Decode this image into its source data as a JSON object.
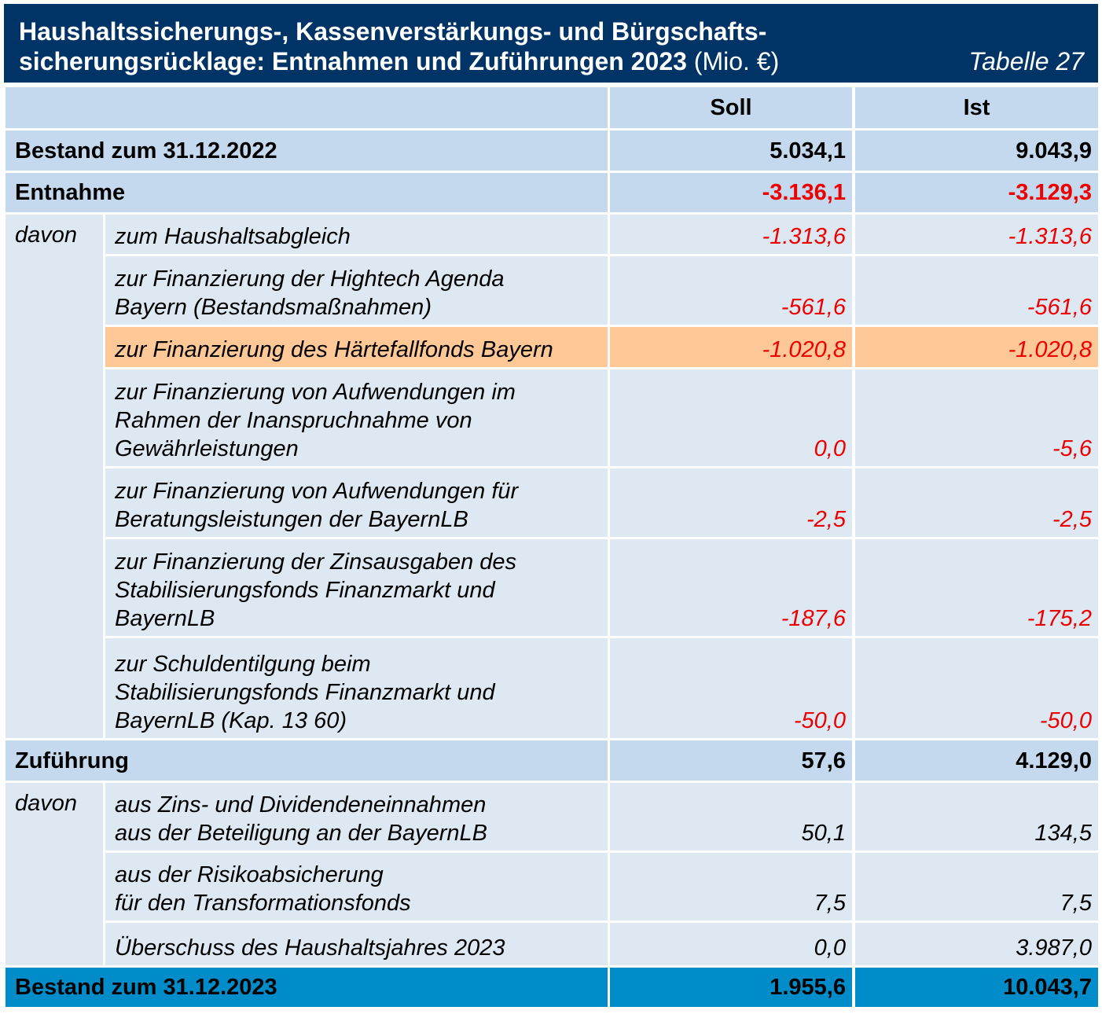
{
  "title": {
    "line1": "Haushaltssicherungs-, Kassenverstärkungs- und Bürgschafts-",
    "line2_bold": "sicherungsrücklage: Entnahmen und Zuführungen 2023",
    "unit": "(Mio. €)",
    "table_number": "Tabelle 27"
  },
  "columns": {
    "soll": "Soll",
    "ist": "Ist"
  },
  "opening": {
    "label": "Bestand zum 31.12.2022",
    "soll": "5.034,1",
    "ist": "9.043,9"
  },
  "withdrawal": {
    "label": "Entnahme",
    "soll": "-3.136,1",
    "ist": "-3.129,3",
    "davon": "davon",
    "items": [
      {
        "lines": [
          "zum Haushaltsabgleich"
        ],
        "soll": "-1.313,6",
        "ist": "-1.313,6"
      },
      {
        "lines": [
          "zur Finanzierung der Hightech Agenda",
          "Bayern (Bestandsmaßnahmen)"
        ],
        "soll": "-561,6",
        "ist": "-561,6"
      },
      {
        "lines": [
          "zur Finanzierung des Härtefallfonds Bayern"
        ],
        "soll": "-1.020,8",
        "ist": "-1.020,8",
        "highlighted": true
      },
      {
        "lines": [
          "zur Finanzierung von Aufwendungen im",
          "Rahmen der Inanspruchnahme von",
          "Gewährleistungen"
        ],
        "soll": "0,0",
        "ist": "-5,6"
      },
      {
        "lines": [
          "zur Finanzierung von Aufwendungen für",
          "Beratungsleistungen der BayernLB"
        ],
        "soll": "-2,5",
        "ist": "-2,5"
      },
      {
        "lines": [
          "zur Finanzierung der Zinsausgaben des",
          "Stabilisierungsfonds Finanzmarkt und",
          "BayernLB"
        ],
        "soll": "-187,6",
        "ist": "-175,2"
      },
      {
        "lines": [
          "zur Schuldentilgung beim",
          "Stabilisierungsfonds Finanzmarkt und",
          "BayernLB (Kap. 13 60)"
        ],
        "soll": "-50,0",
        "ist": "-50,0"
      }
    ]
  },
  "addition": {
    "label": "Zuführung",
    "soll": "57,6",
    "ist": "4.129,0",
    "davon": "davon",
    "items": [
      {
        "lines": [
          "aus Zins- und Dividendeneinnahmen",
          "aus der Beteiligung an der BayernLB"
        ],
        "soll": "50,1",
        "ist": "134,5"
      },
      {
        "lines": [
          "aus der Risikoabsicherung",
          "für den Transformationsfonds"
        ],
        "soll": "7,5",
        "ist": "7,5"
      },
      {
        "lines": [
          "Überschuss des Haushaltsjahres 2023"
        ],
        "soll": "0,0",
        "ist": "3.987,0"
      }
    ]
  },
  "closing": {
    "label": "Bestand zum 31.12.2023",
    "soll": "1.955,6",
    "ist": "10.043,7"
  },
  "colors": {
    "header_bg": "#003366",
    "row_header": "#c5d9ee",
    "row_light": "#dde8f3",
    "highlight": "#ffc896",
    "total": "#008cc8",
    "negative": "#ee0000"
  }
}
